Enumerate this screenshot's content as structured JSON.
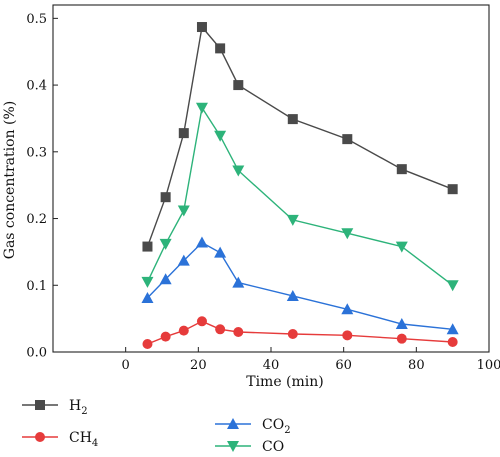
{
  "chart_data": {
    "type": "line",
    "xlabel": "Time (min)",
    "ylabel": "Gas concentration (%)",
    "xlim": [
      -20,
      100
    ],
    "ylim": [
      0,
      0.52
    ],
    "xticks": [
      "0",
      "20",
      "40",
      "60",
      "80",
      "100"
    ],
    "yticks": [
      "0.0",
      "0.1",
      "0.2",
      "0.3",
      "0.4",
      "0.5"
    ],
    "x": [
      6,
      11,
      16,
      21,
      26,
      31,
      46,
      61,
      76,
      90
    ],
    "series": [
      {
        "name": "H",
        "sub": "2",
        "color": "#4a4a4a",
        "marker": "square",
        "values": [
          0.158,
          0.232,
          0.328,
          0.487,
          0.455,
          0.4,
          0.349,
          0.319,
          0.274,
          0.244
        ]
      },
      {
        "name": "CH",
        "sub": "4",
        "color": "#e63b3b",
        "marker": "circle",
        "values": [
          0.012,
          0.023,
          0.032,
          0.046,
          0.034,
          0.03,
          0.027,
          0.025,
          0.02,
          0.015
        ]
      },
      {
        "name": "CO",
        "sub": "2",
        "color": "#2b72d8",
        "marker": "triangle-up",
        "values": [
          0.081,
          0.109,
          0.137,
          0.164,
          0.149,
          0.104,
          0.084,
          0.064,
          0.042,
          0.034
        ]
      },
      {
        "name": "CO",
        "sub": "",
        "color": "#2db37a",
        "marker": "triangle-down",
        "values": [
          0.105,
          0.162,
          0.212,
          0.366,
          0.324,
          0.272,
          0.198,
          0.178,
          0.158,
          0.1
        ]
      }
    ]
  }
}
